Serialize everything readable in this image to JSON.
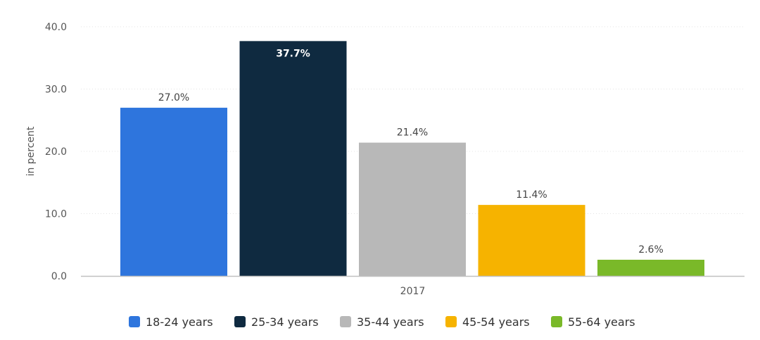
{
  "chart_data": {
    "type": "bar",
    "title": "",
    "xlabel": "",
    "ylabel": "in percent",
    "ylim": [
      0,
      40
    ],
    "yticks": [
      "0.0",
      "10.0",
      "20.0",
      "30.0",
      "40.0"
    ],
    "ytick_values": [
      0,
      10,
      20,
      30,
      40
    ],
    "categories": [
      "2017"
    ],
    "grid": true,
    "legend_position": "bottom",
    "series": [
      {
        "name": "18-24 years",
        "value": 27.0,
        "label": "27.0%",
        "color": "#2e75dd"
      },
      {
        "name": "25-34 years",
        "value": 37.7,
        "label": "37.7%",
        "color": "#0f2a40"
      },
      {
        "name": "35-44 years",
        "value": 21.4,
        "label": "21.4%",
        "color": "#b8b8b8"
      },
      {
        "name": "45-54 years",
        "value": 11.4,
        "label": "11.4%",
        "color": "#f6b300"
      },
      {
        "name": "55-64 years",
        "value": 2.6,
        "label": "2.6%",
        "color": "#7ab929"
      }
    ]
  },
  "colors": {
    "axis_text": "#555555",
    "grid": "#e3e3e3",
    "baseline": "#c0c0c0",
    "label_text": "#444444",
    "inner_label_text": "#ffffff"
  }
}
